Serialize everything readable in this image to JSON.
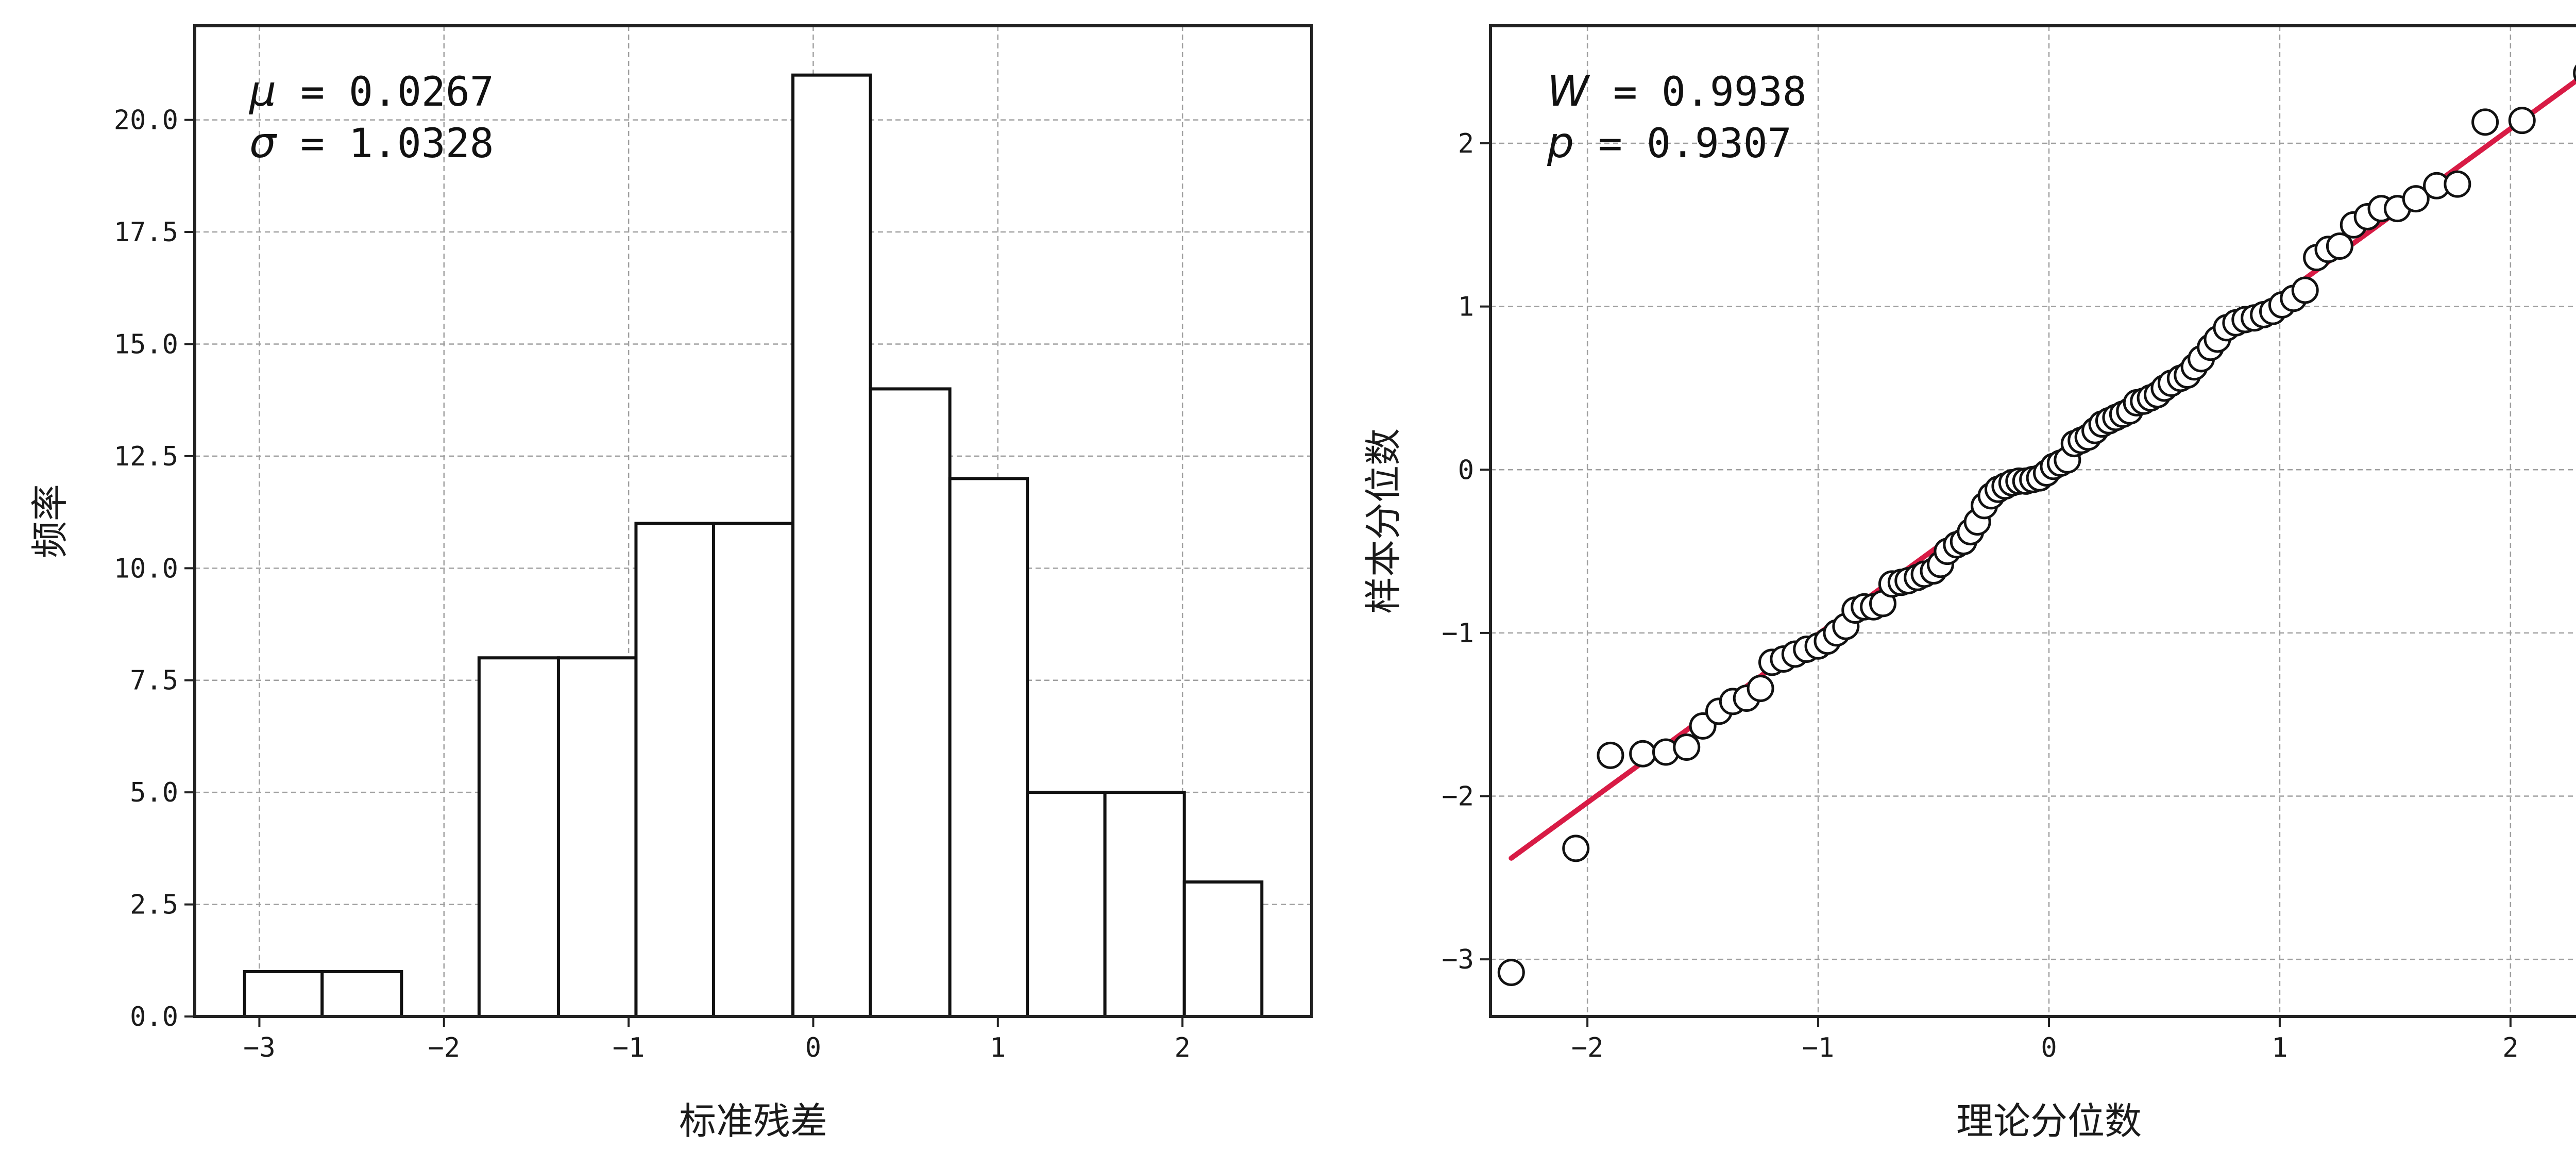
{
  "chart_data": [
    {
      "type": "bar",
      "subtype": "histogram",
      "xlabel": "标准残差",
      "ylabel": "频率",
      "xlim": [
        -3.35,
        2.7
      ],
      "ylim": [
        0,
        22.1
      ],
      "xticks": [
        -3,
        -2,
        -1,
        0,
        1,
        2
      ],
      "xtick_labels": [
        "−3",
        "−2",
        "−1",
        "0",
        "1",
        "2"
      ],
      "yticks": [
        0,
        2.5,
        5,
        7.5,
        10,
        12.5,
        15,
        17.5,
        20
      ],
      "ytick_labels": [
        "0.0",
        "2.5",
        "5.0",
        "7.5",
        "10.0",
        "12.5",
        "15.0",
        "17.5",
        "20.0"
      ],
      "grid": true,
      "bins": [
        {
          "x0": -3.08,
          "x1": -2.66,
          "count": 1
        },
        {
          "x0": -2.66,
          "x1": -2.23,
          "count": 1
        },
        {
          "x0": -2.23,
          "x1": -1.81,
          "count": 0
        },
        {
          "x0": -1.81,
          "x1": -1.38,
          "count": 8
        },
        {
          "x0": -1.38,
          "x1": -0.96,
          "count": 8
        },
        {
          "x0": -0.96,
          "x1": -0.54,
          "count": 11
        },
        {
          "x0": -0.54,
          "x1": -0.11,
          "count": 11
        },
        {
          "x0": -0.11,
          "x1": 0.31,
          "count": 21
        },
        {
          "x0": 0.31,
          "x1": 0.74,
          "count": 14
        },
        {
          "x0": 0.74,
          "x1": 1.16,
          "count": 12
        },
        {
          "x0": 1.16,
          "x1": 1.58,
          "count": 5
        },
        {
          "x0": 1.58,
          "x1": 2.01,
          "count": 5
        },
        {
          "x0": 2.01,
          "x1": 2.43,
          "count": 3
        }
      ],
      "annotations": [
        {
          "symbol": "μ",
          "text": " = 0.0267"
        },
        {
          "symbol": "σ",
          "text": " = 1.0328"
        }
      ]
    },
    {
      "type": "scatter",
      "subtype": "qq-plot",
      "xlabel": "理论分位数",
      "ylabel": "样本分位数",
      "xlim": [
        -2.42,
        2.42
      ],
      "ylim": [
        -3.35,
        2.72
      ],
      "xticks": [
        -2,
        -1,
        0,
        1,
        2
      ],
      "xtick_labels": [
        "−2",
        "−1",
        "0",
        "1",
        "2"
      ],
      "yticks": [
        -3,
        -2,
        -1,
        0,
        1,
        2
      ],
      "ytick_labels": [
        "−3",
        "−2",
        "−1",
        "0",
        "1",
        "2"
      ],
      "grid": true,
      "line_color": "#d81b45",
      "fit_line": {
        "x": [
          -2.33,
          2.33
        ],
        "y": [
          -2.38,
          2.43
        ]
      },
      "points": [
        [
          -2.33,
          -3.08
        ],
        [
          -2.05,
          -2.32
        ],
        [
          -1.9,
          -1.75
        ],
        [
          -1.76,
          -1.74
        ],
        [
          -1.66,
          -1.73
        ],
        [
          -1.57,
          -1.7
        ],
        [
          -1.5,
          -1.57
        ],
        [
          -1.43,
          -1.48
        ],
        [
          -1.37,
          -1.42
        ],
        [
          -1.31,
          -1.4
        ],
        [
          -1.25,
          -1.34
        ],
        [
          -1.2,
          -1.18
        ],
        [
          -1.15,
          -1.16
        ],
        [
          -1.1,
          -1.13
        ],
        [
          -1.05,
          -1.1
        ],
        [
          -1.0,
          -1.08
        ],
        [
          -0.96,
          -1.05
        ],
        [
          -0.92,
          -1.0
        ],
        [
          -0.88,
          -0.96
        ],
        [
          -0.84,
          -0.86
        ],
        [
          -0.8,
          -0.84
        ],
        [
          -0.76,
          -0.84
        ],
        [
          -0.72,
          -0.82
        ],
        [
          -0.68,
          -0.7
        ],
        [
          -0.64,
          -0.69
        ],
        [
          -0.61,
          -0.68
        ],
        [
          -0.57,
          -0.66
        ],
        [
          -0.54,
          -0.64
        ],
        [
          -0.5,
          -0.62
        ],
        [
          -0.47,
          -0.58
        ],
        [
          -0.44,
          -0.5
        ],
        [
          -0.4,
          -0.46
        ],
        [
          -0.37,
          -0.44
        ],
        [
          -0.34,
          -0.38
        ],
        [
          -0.31,
          -0.32
        ],
        [
          -0.28,
          -0.22
        ],
        [
          -0.25,
          -0.16
        ],
        [
          -0.22,
          -0.12
        ],
        [
          -0.19,
          -0.1
        ],
        [
          -0.16,
          -0.08
        ],
        [
          -0.13,
          -0.07
        ],
        [
          -0.1,
          -0.07
        ],
        [
          -0.07,
          -0.06
        ],
        [
          -0.04,
          -0.05
        ],
        [
          -0.01,
          -0.02
        ],
        [
          0.02,
          0.02
        ],
        [
          0.05,
          0.04
        ],
        [
          0.08,
          0.06
        ],
        [
          0.11,
          0.16
        ],
        [
          0.14,
          0.18
        ],
        [
          0.17,
          0.2
        ],
        [
          0.2,
          0.24
        ],
        [
          0.23,
          0.28
        ],
        [
          0.26,
          0.3
        ],
        [
          0.29,
          0.32
        ],
        [
          0.32,
          0.34
        ],
        [
          0.35,
          0.36
        ],
        [
          0.38,
          0.41
        ],
        [
          0.41,
          0.42
        ],
        [
          0.44,
          0.44
        ],
        [
          0.47,
          0.46
        ],
        [
          0.5,
          0.5
        ],
        [
          0.53,
          0.53
        ],
        [
          0.57,
          0.56
        ],
        [
          0.6,
          0.58
        ],
        [
          0.63,
          0.63
        ],
        [
          0.66,
          0.68
        ],
        [
          0.7,
          0.75
        ],
        [
          0.73,
          0.8
        ],
        [
          0.77,
          0.87
        ],
        [
          0.81,
          0.9
        ],
        [
          0.85,
          0.92
        ],
        [
          0.89,
          0.93
        ],
        [
          0.93,
          0.95
        ],
        [
          0.97,
          0.97
        ],
        [
          1.01,
          1.01
        ],
        [
          1.06,
          1.05
        ],
        [
          1.11,
          1.1
        ],
        [
          1.16,
          1.3
        ],
        [
          1.21,
          1.35
        ],
        [
          1.26,
          1.37
        ],
        [
          1.32,
          1.5
        ],
        [
          1.38,
          1.55
        ],
        [
          1.44,
          1.6
        ],
        [
          1.51,
          1.6
        ],
        [
          1.59,
          1.66
        ],
        [
          1.68,
          1.74
        ],
        [
          1.77,
          1.75
        ],
        [
          1.89,
          2.13
        ],
        [
          2.05,
          2.14
        ],
        [
          2.33,
          2.43
        ]
      ],
      "annotations": [
        {
          "symbol": "W",
          "text": " = 0.9938"
        },
        {
          "symbol": "p",
          "text": " = 0.9307"
        }
      ]
    }
  ]
}
